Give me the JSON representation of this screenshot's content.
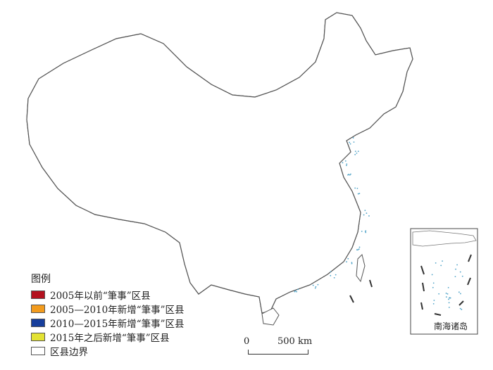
{
  "legend": {
    "title": "图例",
    "items": [
      {
        "label": "2005年以前“筆事”区县",
        "color": "#b3121f"
      },
      {
        "label": "2005—2010年新增“筆事”区县",
        "color": "#f29b1d"
      },
      {
        "label": "2010—2015年新增“筆事”区县",
        "color": "#173e9c"
      },
      {
        "label": "2015年之后新增“筆事”区县",
        "color": "#e3e233"
      },
      {
        "label": "区县边界",
        "color": "#ffffff"
      }
    ]
  },
  "scale": {
    "zero": "0",
    "distance": "500 km"
  },
  "inset": {
    "label": "南海诸岛"
  },
  "colors": {
    "outline": "#555555",
    "county": "#c8c8c8",
    "coast": "#4fa3c8"
  }
}
